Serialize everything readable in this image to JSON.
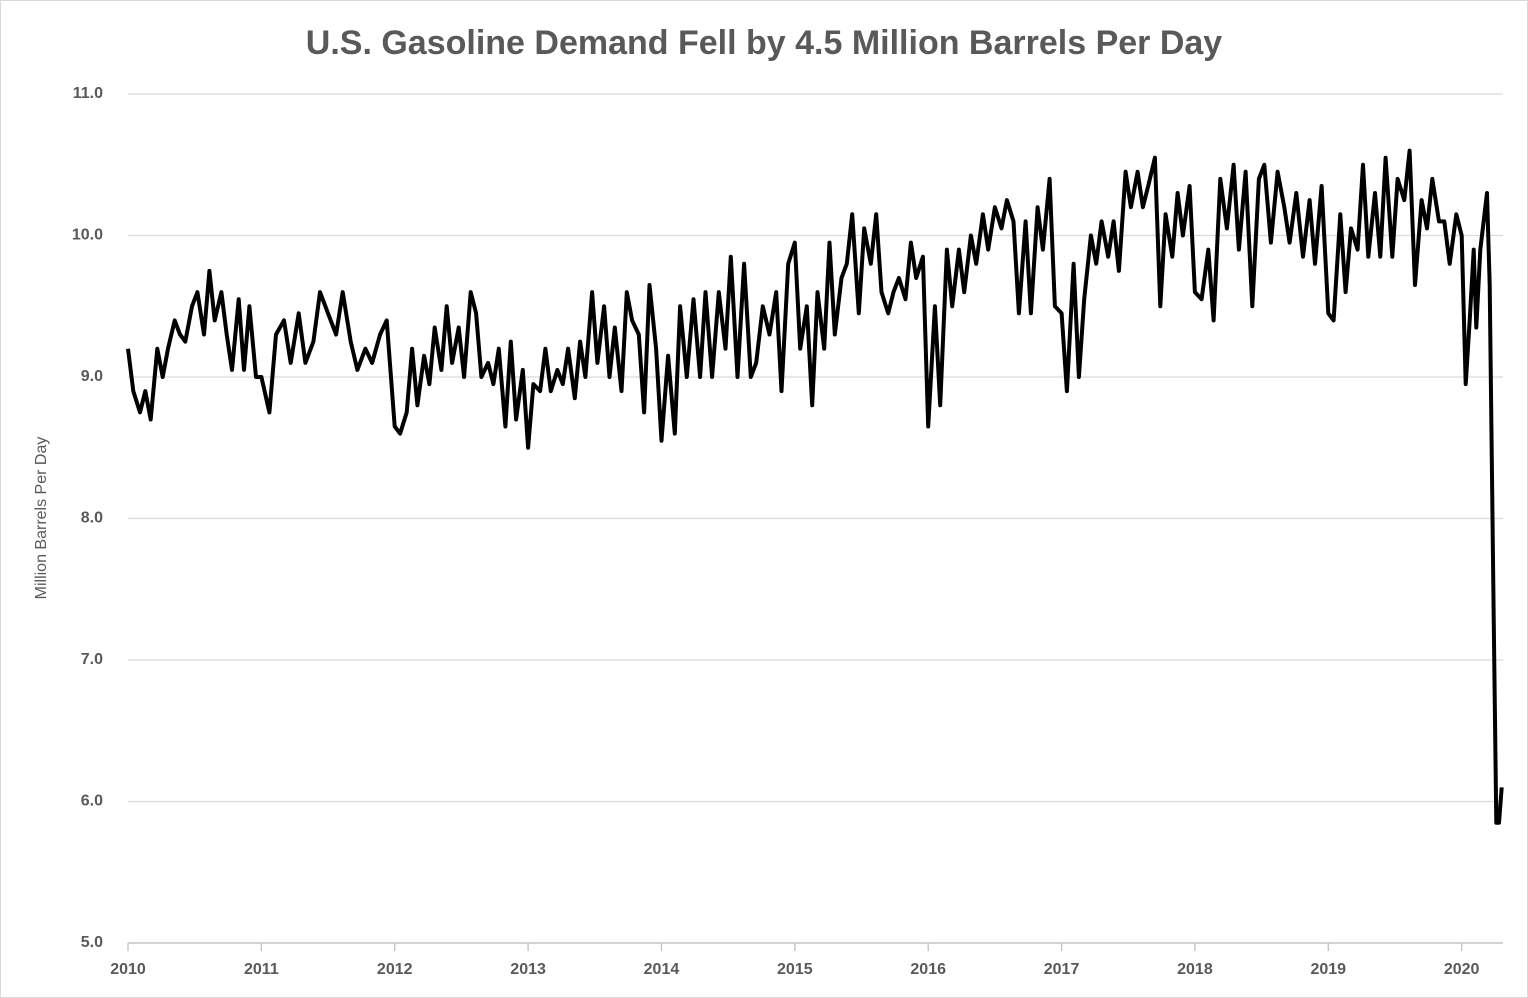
{
  "chart_data": {
    "type": "line",
    "title": "U.S. Gasoline Demand Fell by 4.5 Million Barrels Per Day",
    "y_label": "Million Barrels Per Day",
    "xlim": [
      2010,
      2020.31
    ],
    "xticks": [
      2010,
      2011,
      2012,
      2013,
      2014,
      2015,
      2016,
      2017,
      2018,
      2019,
      2020
    ],
    "ylim": [
      5,
      11
    ],
    "yticks": [
      {
        "value": 5,
        "label": "5.0"
      },
      {
        "value": 6,
        "label": "6.0"
      },
      {
        "value": 7,
        "label": "7.0"
      },
      {
        "value": 8,
        "label": "8.0"
      },
      {
        "value": 9,
        "label": "9.0"
      },
      {
        "value": 10,
        "label": "10.0"
      },
      {
        "value": 11,
        "label": "11.0"
      }
    ],
    "grid": true,
    "x": [
      2010.0,
      2010.04,
      2010.09,
      2010.13,
      2010.17,
      2010.22,
      2010.26,
      2010.3,
      2010.35,
      2010.39,
      2010.43,
      2010.48,
      2010.52,
      2010.57,
      2010.61,
      2010.65,
      2010.7,
      2010.74,
      2010.78,
      2010.83,
      2010.87,
      2010.91,
      2010.96,
      2011.0,
      2011.06,
      2011.11,
      2011.17,
      2011.22,
      2011.28,
      2011.33,
      2011.39,
      2011.44,
      2011.5,
      2011.56,
      2011.61,
      2011.67,
      2011.72,
      2011.78,
      2011.83,
      2011.89,
      2011.94,
      2012.0,
      2012.04,
      2012.09,
      2012.13,
      2012.17,
      2012.22,
      2012.26,
      2012.3,
      2012.35,
      2012.39,
      2012.43,
      2012.48,
      2012.52,
      2012.57,
      2012.61,
      2012.65,
      2012.7,
      2012.74,
      2012.78,
      2012.83,
      2012.87,
      2012.91,
      2012.96,
      2013.0,
      2013.04,
      2013.09,
      2013.13,
      2013.17,
      2013.22,
      2013.26,
      2013.3,
      2013.35,
      2013.39,
      2013.43,
      2013.48,
      2013.52,
      2013.57,
      2013.61,
      2013.65,
      2013.7,
      2013.74,
      2013.78,
      2013.83,
      2013.87,
      2013.91,
      2013.96,
      2014.0,
      2014.05,
      2014.1,
      2014.14,
      2014.19,
      2014.24,
      2014.29,
      2014.33,
      2014.38,
      2014.43,
      2014.48,
      2014.52,
      2014.57,
      2014.62,
      2014.67,
      2014.71,
      2014.76,
      2014.81,
      2014.86,
      2014.9,
      2014.95,
      2015.0,
      2015.04,
      2015.09,
      2015.13,
      2015.17,
      2015.22,
      2015.26,
      2015.3,
      2015.35,
      2015.39,
      2015.43,
      2015.48,
      2015.52,
      2015.57,
      2015.61,
      2015.65,
      2015.7,
      2015.74,
      2015.78,
      2015.83,
      2015.87,
      2015.91,
      2015.96,
      2016.0,
      2016.05,
      2016.09,
      2016.14,
      2016.18,
      2016.23,
      2016.27,
      2016.32,
      2016.36,
      2016.41,
      2016.45,
      2016.5,
      2016.55,
      2016.59,
      2016.64,
      2016.68,
      2016.73,
      2016.77,
      2016.82,
      2016.86,
      2016.91,
      2016.95,
      2017.0,
      2017.04,
      2017.09,
      2017.13,
      2017.17,
      2017.22,
      2017.26,
      2017.3,
      2017.35,
      2017.39,
      2017.43,
      2017.48,
      2017.52,
      2017.57,
      2017.61,
      2017.65,
      2017.7,
      2017.74,
      2017.78,
      2017.83,
      2017.87,
      2017.91,
      2017.96,
      2018.0,
      2018.05,
      2018.1,
      2018.14,
      2018.19,
      2018.24,
      2018.29,
      2018.33,
      2018.38,
      2018.43,
      2018.48,
      2018.52,
      2018.57,
      2018.62,
      2018.67,
      2018.71,
      2018.76,
      2018.81,
      2018.86,
      2018.9,
      2018.95,
      2019.0,
      2019.04,
      2019.09,
      2019.13,
      2019.17,
      2019.22,
      2019.26,
      2019.3,
      2019.35,
      2019.39,
      2019.43,
      2019.48,
      2019.52,
      2019.57,
      2019.61,
      2019.65,
      2019.7,
      2019.74,
      2019.78,
      2019.83,
      2019.87,
      2019.91,
      2019.96,
      2020.0,
      2020.03,
      2020.06,
      2020.09,
      2020.11,
      2020.14,
      2020.19,
      2020.21,
      2020.24,
      2020.26,
      2020.28,
      2020.3
    ],
    "series": [
      {
        "color": "#000000",
        "values": [
          9.2,
          8.9,
          8.75,
          8.9,
          8.7,
          9.2,
          9.0,
          9.2,
          9.4,
          9.3,
          9.25,
          9.5,
          9.6,
          9.3,
          9.75,
          9.4,
          9.6,
          9.3,
          9.05,
          9.55,
          9.05,
          9.5,
          9.0,
          9.0,
          8.75,
          9.3,
          9.4,
          9.1,
          9.45,
          9.1,
          9.25,
          9.6,
          9.45,
          9.3,
          9.6,
          9.25,
          9.05,
          9.2,
          9.1,
          9.3,
          9.4,
          8.65,
          8.6,
          8.75,
          9.2,
          8.8,
          9.15,
          8.95,
          9.35,
          9.05,
          9.5,
          9.1,
          9.35,
          9.0,
          9.6,
          9.45,
          9.0,
          9.1,
          8.95,
          9.2,
          8.65,
          9.25,
          8.7,
          9.05,
          8.5,
          8.95,
          8.9,
          9.2,
          8.9,
          9.05,
          8.95,
          9.2,
          8.85,
          9.25,
          9.0,
          9.6,
          9.1,
          9.5,
          9.0,
          9.35,
          8.9,
          9.6,
          9.4,
          9.3,
          8.75,
          9.65,
          9.2,
          8.55,
          9.15,
          8.6,
          9.5,
          9.0,
          9.55,
          9.0,
          9.6,
          9.0,
          9.6,
          9.2,
          9.85,
          9.0,
          9.8,
          9.0,
          9.1,
          9.5,
          9.3,
          9.6,
          8.9,
          9.8,
          9.95,
          9.2,
          9.5,
          8.8,
          9.6,
          9.2,
          9.95,
          9.3,
          9.7,
          9.8,
          10.15,
          9.45,
          10.05,
          9.8,
          10.15,
          9.6,
          9.45,
          9.6,
          9.7,
          9.55,
          9.95,
          9.7,
          9.85,
          8.65,
          9.5,
          8.8,
          9.9,
          9.5,
          9.9,
          9.6,
          10.0,
          9.8,
          10.15,
          9.9,
          10.2,
          10.05,
          10.25,
          10.1,
          9.45,
          10.1,
          9.45,
          10.2,
          9.9,
          10.4,
          9.5,
          9.45,
          8.9,
          9.8,
          9.0,
          9.55,
          10.0,
          9.8,
          10.1,
          9.85,
          10.1,
          9.75,
          10.45,
          10.2,
          10.45,
          10.2,
          10.35,
          10.55,
          9.5,
          10.15,
          9.85,
          10.3,
          10.0,
          10.35,
          9.6,
          9.55,
          9.9,
          9.4,
          10.4,
          10.05,
          10.5,
          9.9,
          10.45,
          9.5,
          10.4,
          10.5,
          9.95,
          10.45,
          10.2,
          9.95,
          10.3,
          9.85,
          10.25,
          9.8,
          10.35,
          9.45,
          9.4,
          10.15,
          9.6,
          10.05,
          9.9,
          10.5,
          9.85,
          10.3,
          9.85,
          10.55,
          9.85,
          10.4,
          10.25,
          10.6,
          9.65,
          10.25,
          10.05,
          10.4,
          10.1,
          10.1,
          9.8,
          10.15,
          10.0,
          8.95,
          9.4,
          9.9,
          9.35,
          9.9,
          10.3,
          9.65,
          7.3,
          5.85,
          5.85,
          6.1
        ]
      }
    ]
  }
}
